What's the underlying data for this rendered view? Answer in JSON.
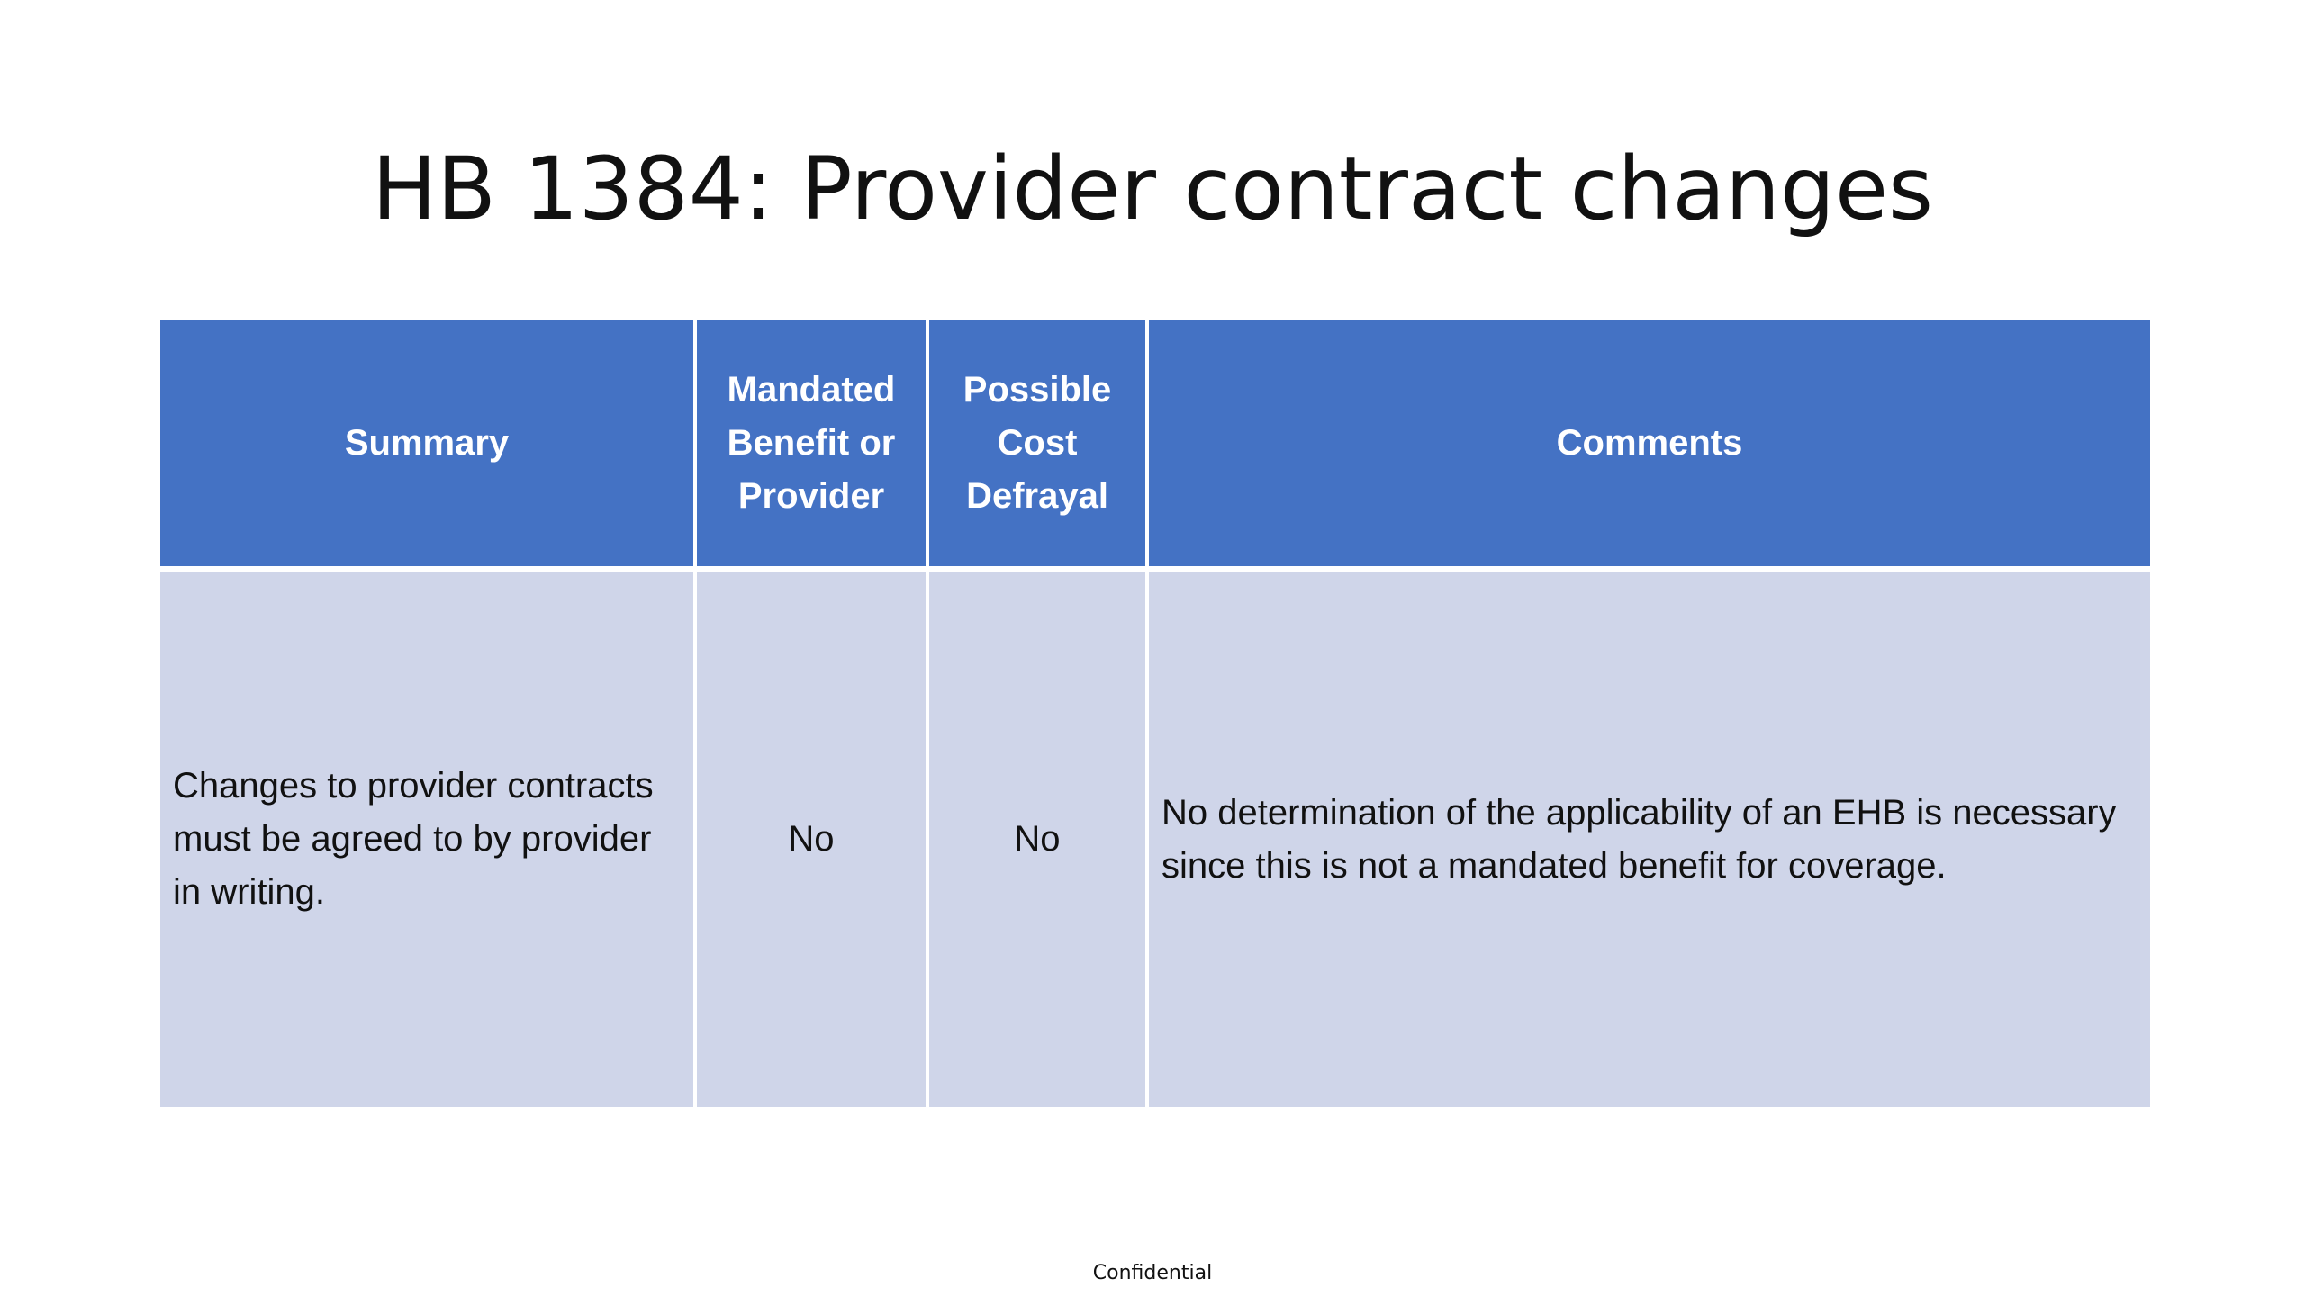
{
  "slide": {
    "title": "HB 1384: Provider contract changes",
    "footer": "Confidential"
  },
  "table": {
    "headers": {
      "summary": "Summary",
      "mandated": "Mandated Benefit or Provider",
      "cost": "Possible Cost Defrayal",
      "comments": "Comments"
    },
    "rows": [
      {
        "summary": "Changes to provider contracts must be agreed to by provider in writing.",
        "mandated": "No",
        "cost": "No",
        "comments": "No determination of the applicability of an EHB is necessary since this is not a mandated benefit for coverage."
      }
    ],
    "colors": {
      "header_bg": "#4472c4",
      "row_bg": "#cfd5e9"
    }
  }
}
